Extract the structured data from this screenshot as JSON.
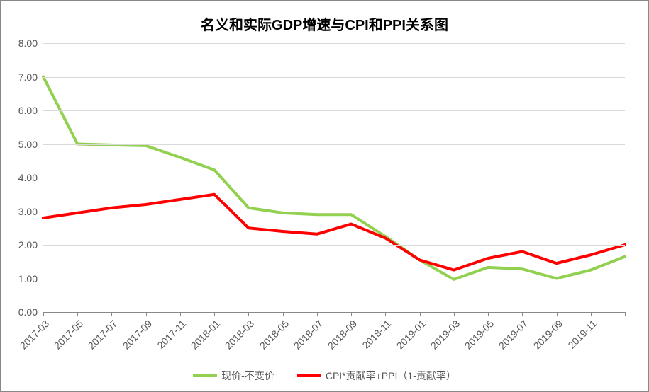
{
  "chart": {
    "type": "line",
    "title": "名义和实际GDP增速与CPI和PPI关系图",
    "title_fontsize": 20,
    "title_fontweight": "bold",
    "background_color": "#ffffff",
    "border_color": "#888888",
    "grid_color": "#d9d9d9",
    "axis_color": "#888888",
    "tick_label_color": "#555555",
    "tick_label_fontsize": 14,
    "ylim": [
      0,
      8
    ],
    "ytick_step": 1.0,
    "ytick_format": "0.00",
    "yticks": [
      "0.00",
      "1.00",
      "2.00",
      "3.00",
      "4.00",
      "5.00",
      "6.00",
      "7.00",
      "8.00"
    ],
    "xlabels": [
      "2017-03",
      "2017-05",
      "2017-07",
      "2017-09",
      "2017-11",
      "2018-01",
      "2018-03",
      "2018-05",
      "2018-07",
      "2018-09",
      "2018-11",
      "2019-01",
      "2019-03",
      "2019-05",
      "2019-07",
      "2019-09",
      "2019-11"
    ],
    "xlabel_rotation_deg": -45,
    "n_points": 18,
    "series": [
      {
        "name": "现价-不变价",
        "color": "#92d050",
        "line_width": 4,
        "values": [
          7.0,
          5.0,
          4.97,
          4.95,
          4.6,
          4.23,
          3.1,
          2.95,
          2.9,
          2.9,
          2.25,
          1.55,
          0.97,
          1.33,
          1.28,
          1.0,
          1.25,
          1.65
        ]
      },
      {
        "name": "CPI*贡献率+PPI（1-贡献率）",
        "color": "#ff0000",
        "line_width": 4,
        "values": [
          2.8,
          2.95,
          3.1,
          3.2,
          3.35,
          3.5,
          2.5,
          2.4,
          2.32,
          2.62,
          2.2,
          1.55,
          1.25,
          1.6,
          1.8,
          1.45,
          1.7,
          2.0
        ]
      }
    ],
    "legend": {
      "position": "bottom",
      "items": [
        {
          "label": "现价-不变价",
          "color": "#92d050"
        },
        {
          "label": "CPI*贡献率+PPI（1-贡献率）",
          "color": "#ff0000"
        }
      ]
    }
  }
}
